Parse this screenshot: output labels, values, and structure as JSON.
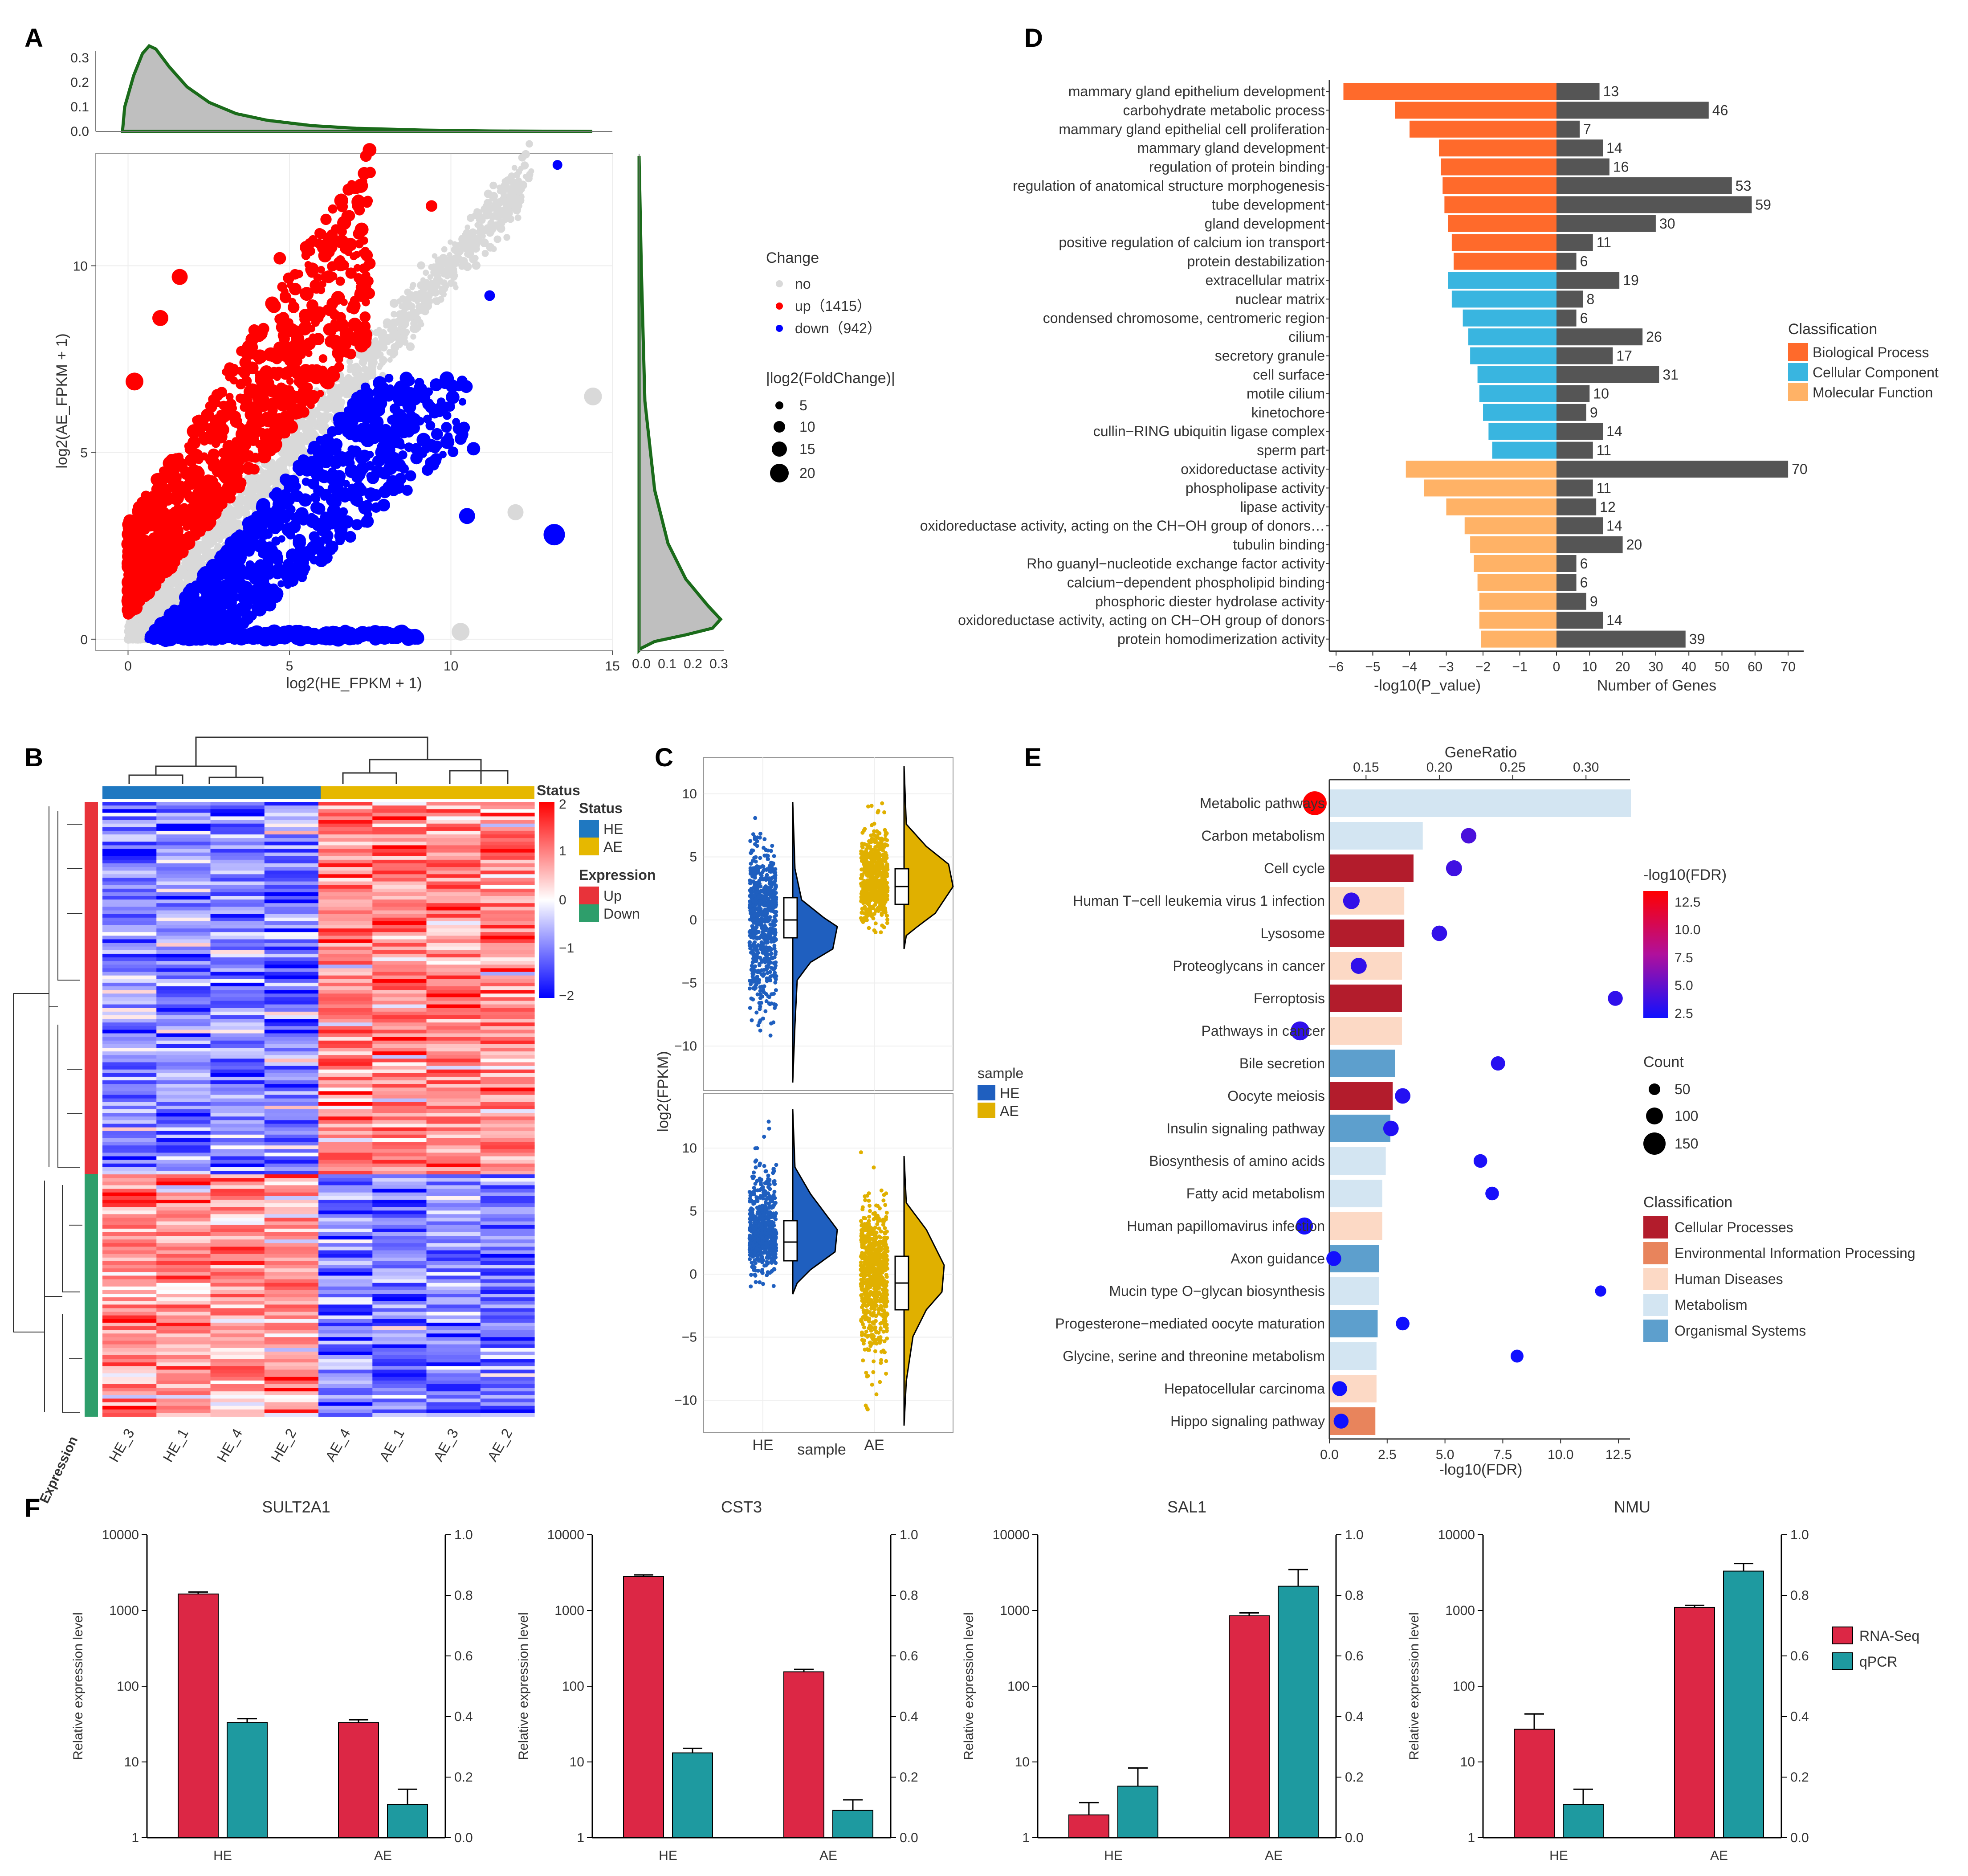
{
  "panels": {
    "A": {
      "label": "A",
      "xlabel": "log2(HE_FPKM + 1)",
      "ylabel": "log2(AE_FPKM + 1)",
      "xlim": [
        -1,
        15
      ],
      "ylim": [
        -0.3,
        13
      ],
      "x_ticks": [
        0,
        5,
        10,
        15
      ],
      "y_ticks": [
        0,
        5,
        10
      ],
      "top_density_ticks": [
        "0.0",
        "0.1",
        "0.2",
        "0.3"
      ],
      "right_density_ticks": [
        "0.0",
        "0.1",
        "0.2",
        "0.3"
      ],
      "legend": {
        "change_title": "Change",
        "change_items": [
          {
            "label": "no",
            "color": "#d9d9d9"
          },
          {
            "label": "up（1415）",
            "color": "#ff0000"
          },
          {
            "label": "down（942）",
            "color": "#0000ff"
          }
        ],
        "size_title": "|log2(FoldChange)|",
        "size_items": [
          "5",
          "10",
          "15",
          "20"
        ]
      },
      "colors": {
        "no": "#d9d9d9",
        "up": "#ff0000",
        "down": "#0000ff",
        "density_fill": "#bfbfbf",
        "density_line": "#1a6b1a"
      }
    },
    "B": {
      "label": "B",
      "samples": [
        "HE_3",
        "HE_1",
        "HE_4",
        "HE_2",
        "AE_4",
        "AE_1",
        "AE_3",
        "AE_2"
      ],
      "annotation_label": "Expression",
      "colorbar_title": "Status",
      "colorbar_ticks": [
        "2",
        "1",
        "0",
        "−1",
        "−2"
      ],
      "legend_status_title": "Status",
      "legend_status": [
        {
          "label": "HE",
          "color": "#1f78c1"
        },
        {
          "label": "AE",
          "color": "#e6b800"
        }
      ],
      "legend_expr_title": "Expression",
      "legend_expr": [
        {
          "label": "Up",
          "color": "#e8333a"
        },
        {
          "label": "Down",
          "color": "#2e9e6b"
        }
      ]
    },
    "C": {
      "label": "C",
      "ylabel": "log2(FPKM)",
      "xlabel": "sample",
      "groups": [
        "HE",
        "AE"
      ],
      "top_yticks": [
        "10",
        "5",
        "0",
        "−5",
        "−10"
      ],
      "bottom_yticks": [
        "10",
        "5",
        "0",
        "−5",
        "−10"
      ],
      "legend_title": "sample",
      "legend": [
        {
          "label": "HE",
          "color": "#1f5fbf"
        },
        {
          "label": "AE",
          "color": "#e0b000"
        }
      ]
    },
    "D": {
      "label": "D",
      "left_xlabel": "-log10(P_value)",
      "right_xlabel": "Number of Genes",
      "left_ticks": [
        "−6",
        "−5",
        "−4",
        "−3",
        "−2",
        "−1",
        "0"
      ],
      "right_ticks": [
        "10",
        "20",
        "30",
        "40",
        "50",
        "60",
        "70"
      ],
      "legend_title": "Classification",
      "legend": [
        {
          "label": "Biological Process",
          "color": "#ff6a2b"
        },
        {
          "label": "Cellular Component",
          "color": "#39b5e0"
        },
        {
          "label": "Molecular Function",
          "color": "#ffb266"
        }
      ]
    },
    "E": {
      "label": "E",
      "top_xlabel": "GeneRatio",
      "bottom_xlabel": "-log10(FDR)",
      "top_ticks": [
        "0.15",
        "0.20",
        "0.25",
        "0.30"
      ],
      "bottom_ticks": [
        "0.0",
        "2.5",
        "5.0",
        "7.5",
        "10.0",
        "12.5"
      ],
      "fdr_legend_title": "-log10(FDR)",
      "fdr_legend_ticks": [
        "12.5",
        "10.0",
        "7.5",
        "5.0",
        "2.5"
      ],
      "count_legend_title": "Count",
      "count_legend": [
        "50",
        "100",
        "150"
      ],
      "class_legend_title": "Classification",
      "class_legend": [
        {
          "label": "Cellular Processes",
          "color": "#b31c2c"
        },
        {
          "label": "Environmental Information Processing",
          "color": "#e8845c"
        },
        {
          "label": "Human Diseases",
          "color": "#fcd9c5"
        },
        {
          "label": "Metabolism",
          "color": "#d3e5f2"
        },
        {
          "label": "Organismal Systems",
          "color": "#5d9fcd"
        }
      ]
    },
    "F": {
      "label": "F",
      "ylabel": "Relative expression level",
      "left_ticks": [
        "1",
        "10",
        "100",
        "1000",
        "10000"
      ],
      "right_ticks": [
        "0.0",
        "0.2",
        "0.4",
        "0.6",
        "0.8",
        "1.0"
      ],
      "groups": [
        "HE",
        "AE"
      ],
      "legend": [
        {
          "label": "RNA-Seq",
          "color": "#dc2745"
        },
        {
          "label": "qPCR",
          "color": "#1e9aa0"
        }
      ]
    }
  },
  "chart_data": [
    {
      "type": "bar",
      "panel": "D",
      "title": "",
      "categories": [
        "mammary gland epithelium development",
        "carbohydrate metabolic process",
        "mammary gland epithelial cell proliferation",
        "mammary gland development",
        "regulation of protein binding",
        "regulation of anatomical structure morphogenesis",
        "tube development",
        "gland development",
        "positive regulation of calcium ion transport",
        "protein destabilization",
        "extracellular matrix",
        "nuclear matrix",
        "condensed chromosome, centromeric region",
        "cilium",
        "secretory granule",
        "cell surface",
        "motile cilium",
        "kinetochore",
        "cullin−RING ubiquitin ligase complex",
        "sperm part",
        "oxidoreductase activity",
        "phospholipase activity",
        "lipase activity",
        "oxidoreductase activity, acting on the CH−OH group of donors…",
        "tubulin binding",
        "Rho guanyl−nucleotide exchange factor activity",
        "calcium−dependent phospholipid binding",
        "phosphoric diester hydrolase activity",
        "oxidoreductase activity, acting on CH−OH group of donors",
        "protein homodimerization activity"
      ],
      "classification": [
        "BP",
        "BP",
        "BP",
        "BP",
        "BP",
        "BP",
        "BP",
        "BP",
        "BP",
        "BP",
        "CC",
        "CC",
        "CC",
        "CC",
        "CC",
        "CC",
        "CC",
        "CC",
        "CC",
        "CC",
        "MF",
        "MF",
        "MF",
        "MF",
        "MF",
        "MF",
        "MF",
        "MF",
        "MF",
        "MF"
      ],
      "series": [
        {
          "name": "-log10(P_value)",
          "values": [
            5.8,
            4.4,
            4.0,
            3.2,
            3.15,
            3.1,
            3.05,
            2.95,
            2.85,
            2.8,
            2.95,
            2.85,
            2.55,
            2.4,
            2.35,
            2.15,
            2.1,
            2.0,
            1.85,
            1.75,
            4.1,
            3.6,
            3.0,
            2.5,
            2.35,
            2.25,
            2.15,
            2.1,
            2.1,
            2.05
          ]
        },
        {
          "name": "Number of Genes",
          "values": [
            13,
            46,
            7,
            14,
            16,
            53,
            59,
            30,
            11,
            6,
            19,
            8,
            6,
            26,
            17,
            31,
            10,
            9,
            14,
            11,
            70,
            11,
            12,
            14,
            20,
            6,
            6,
            9,
            14,
            39
          ]
        }
      ],
      "xlim_left": [
        -6.5,
        0
      ],
      "xlim_right": [
        0,
        72
      ]
    },
    {
      "type": "bar",
      "panel": "E",
      "title": "",
      "categories": [
        "Metabolic pathways",
        "Carbon metabolism",
        "Cell cycle",
        "Human T−cell leukemia virus 1 infection",
        "Lysosome",
        "Proteoglycans in cancer",
        "Ferroptosis",
        "Pathways in cancer",
        "Bile secretion",
        "Oocyte meiosis",
        "Insulin signaling pathway",
        "Biosynthesis of amino acids",
        "Fatty acid metabolism",
        "Human papillomavirus infection",
        "Axon guidance",
        "Mucin type O−glycan biosynthesis",
        "Progesterone−mediated oocyte maturation",
        "Glycine, serine and threonine metabolism",
        "Hepatocellular carcinoma",
        "Hippo signaling pathway"
      ],
      "classification": [
        "Metabolism",
        "Metabolism",
        "Cellular Processes",
        "Human Diseases",
        "Cellular Processes",
        "Human Diseases",
        "Cellular Processes",
        "Human Diseases",
        "Organismal Systems",
        "Cellular Processes",
        "Organismal Systems",
        "Metabolism",
        "Metabolism",
        "Human Diseases",
        "Organismal Systems",
        "Metabolism",
        "Organismal Systems",
        "Metabolism",
        "Human Diseases",
        "Environmental Information Processing"
      ],
      "neg_log10_fdr": [
        13.0,
        4.0,
        3.6,
        3.2,
        3.2,
        3.1,
        3.1,
        3.1,
        2.8,
        2.7,
        2.6,
        2.4,
        2.25,
        2.25,
        2.1,
        2.1,
        2.05,
        2.0,
        2.0,
        1.95
      ],
      "gene_ratio": [
        0.115,
        0.22,
        0.21,
        0.14,
        0.2,
        0.145,
        0.32,
        0.105,
        0.24,
        0.175,
        0.167,
        0.228,
        0.236,
        0.108,
        0.128,
        0.31,
        0.175,
        0.253,
        0.132,
        0.133
      ],
      "count": [
        150,
        45,
        50,
        55,
        45,
        50,
        40,
        80,
        35,
        45,
        45,
        30,
        30,
        60,
        40,
        15,
        30,
        25,
        40,
        40
      ],
      "xlim_fdr": [
        0,
        13
      ],
      "xlim_ratio": [
        0.125,
        0.33
      ]
    },
    {
      "type": "bar",
      "panel": "F",
      "title": "SULT2A1",
      "categories": [
        "HE",
        "AE"
      ],
      "series": [
        {
          "name": "RNA-Seq",
          "values": [
            1650,
            33
          ],
          "errors": [
            100,
            3
          ]
        },
        {
          "name": "qPCR",
          "values": [
            0.38,
            0.11
          ],
          "errors": [
            0.013,
            0.05
          ]
        }
      ],
      "ylim_left": [
        1,
        10000
      ],
      "yscale_left": "log",
      "ylim_right": [
        0,
        1
      ]
    },
    {
      "type": "bar",
      "panel": "F",
      "title": "CST3",
      "categories": [
        "HE",
        "AE"
      ],
      "series": [
        {
          "name": "RNA-Seq",
          "values": [
            2800,
            155
          ],
          "errors": [
            150,
            12
          ]
        },
        {
          "name": "qPCR",
          "values": [
            0.28,
            0.09
          ],
          "errors": [
            0.015,
            0.035
          ]
        }
      ],
      "ylim_left": [
        1,
        10000
      ],
      "yscale_left": "log",
      "ylim_right": [
        0,
        1
      ]
    },
    {
      "type": "bar",
      "panel": "F",
      "title": "SAL1",
      "categories": [
        "HE",
        "AE"
      ],
      "series": [
        {
          "name": "RNA-Seq",
          "values": [
            2,
            850
          ],
          "errors": [
            0.9,
            80
          ]
        },
        {
          "name": "qPCR",
          "values": [
            0.17,
            0.83
          ],
          "errors": [
            0.06,
            0.055
          ]
        }
      ],
      "ylim_left": [
        1,
        10000
      ],
      "yscale_left": "log",
      "ylim_right": [
        0,
        1
      ]
    },
    {
      "type": "bar",
      "panel": "F",
      "title": "NMU",
      "categories": [
        "HE",
        "AE"
      ],
      "series": [
        {
          "name": "RNA-Seq",
          "values": [
            27,
            1100
          ],
          "errors": [
            16,
            70
          ]
        },
        {
          "name": "qPCR",
          "values": [
            0.11,
            0.88
          ],
          "errors": [
            0.05,
            0.025
          ]
        }
      ],
      "ylim_left": [
        1,
        10000
      ],
      "yscale_left": "log",
      "ylim_right": [
        0,
        1
      ]
    }
  ]
}
